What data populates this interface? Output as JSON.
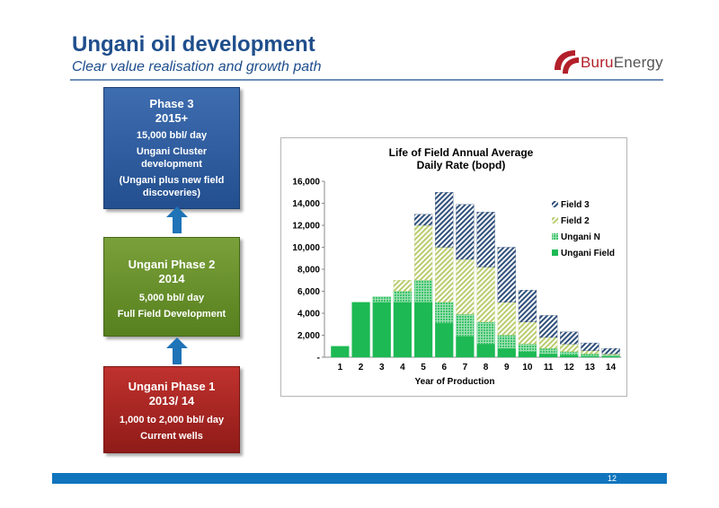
{
  "header": {
    "title": "Ungani oil development",
    "subtitle": "Clear value realisation and growth path",
    "logo_text_1": "Buru",
    "logo_text_2": "Energy"
  },
  "phases": [
    {
      "heading": "Phase 3",
      "period": "2015+",
      "rate": "15,000 bbl/ day",
      "desc": "Ungani Cluster development",
      "note": "(Ungani plus new field discoveries)",
      "color": "#2b5a9c"
    },
    {
      "heading": "Ungani Phase 2",
      "period": "2014",
      "rate": "5,000 bbl/ day",
      "desc": "Full Field Development",
      "color": "#659029"
    },
    {
      "heading": "Ungani Phase 1",
      "period": "2013/ 14",
      "rate": "1,000 to 2,000 bbl/ day",
      "desc": "Current wells",
      "color": "#a3241f"
    }
  ],
  "arrow_color": "#1f73b7",
  "footer": {
    "page": "12",
    "bar_color": "#1075bd"
  },
  "chart_data": {
    "type": "bar",
    "stacked": true,
    "title": "Life of Field Annual Average Daily Rate (bopd)",
    "title_line1": "Life of Field Annual Average",
    "title_line2": "Daily Rate (bopd)",
    "xlabel": "Year of Production",
    "ylabel": "",
    "categories": [
      "1",
      "2",
      "3",
      "4",
      "5",
      "6",
      "7",
      "8",
      "9",
      "10",
      "11",
      "12",
      "13",
      "14"
    ],
    "ylim": [
      0,
      16000
    ],
    "yticks": [
      0,
      2000,
      4000,
      6000,
      8000,
      10000,
      12000,
      14000,
      16000
    ],
    "ytick_labels": [
      "-",
      "2,000",
      "4,000",
      "6,000",
      "8,000",
      "10,000",
      "12,000",
      "14,000",
      "16,000"
    ],
    "grid": false,
    "legend_position": "right",
    "series": [
      {
        "name": "Ungani Field",
        "color": "#1db954",
        "pattern": "solid",
        "values": [
          1000,
          5000,
          5000,
          5000,
          5000,
          3100,
          1900,
          1200,
          800,
          500,
          300,
          200,
          100,
          100
        ]
      },
      {
        "name": "Ungani N",
        "color": "#3cc46a",
        "pattern": "dots",
        "values": [
          0,
          0,
          500,
          1000,
          2000,
          1900,
          2000,
          2000,
          1200,
          700,
          500,
          300,
          200,
          100
        ]
      },
      {
        "name": "Field 2",
        "color": "#b9cc6e",
        "pattern": "diag",
        "values": [
          0,
          0,
          0,
          1000,
          5000,
          5000,
          5000,
          5000,
          3000,
          2000,
          1000,
          700,
          300,
          100
        ]
      },
      {
        "name": "Field 3",
        "color": "#2f4f7a",
        "pattern": "diag",
        "values": [
          0,
          0,
          0,
          0,
          1000,
          5000,
          5000,
          5000,
          5000,
          2900,
          2000,
          1100,
          700,
          500
        ]
      }
    ],
    "legend_order": [
      "Field 3",
      "Field 2",
      "Ungani N",
      "Ungani Field"
    ]
  }
}
